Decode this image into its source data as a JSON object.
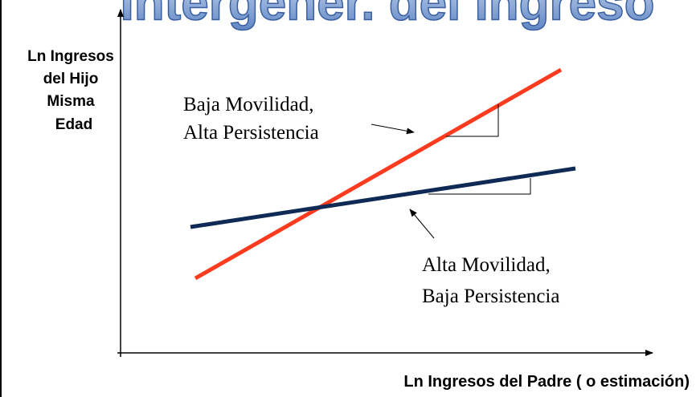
{
  "title": "Intergener. del Ingreso",
  "y_axis_label": [
    "Ln Ingresos",
    "del Hijo",
    "Misma",
    "Edad"
  ],
  "x_axis_label": "Ln Ingresos del Padre ( o estimación)",
  "annotations": [
    {
      "lines": [
        "Baja Movilidad,",
        "Alta Persistencia"
      ]
    },
    {
      "lines": [
        "Alta Movilidad,",
        "Baja Persistencia"
      ]
    }
  ]
}
